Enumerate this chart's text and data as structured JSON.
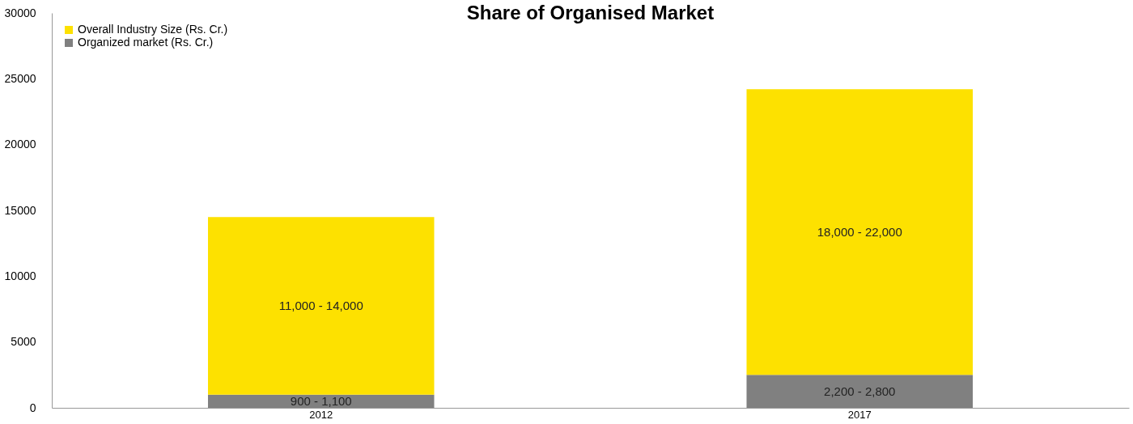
{
  "chart_data": {
    "type": "bar",
    "title": "Share of Organised Market",
    "categories": [
      "2012",
      "2017"
    ],
    "stacked": true,
    "series": [
      {
        "name": "Organized market (Rs. Cr.)",
        "color": "#808080",
        "values": [
          1000,
          2500
        ]
      },
      {
        "name": "Overall Industry Size (Rs. Cr.)",
        "color": "#fde100",
        "values": [
          13500,
          21700
        ]
      }
    ],
    "annotations": [
      "900 - 1,100",
      "2,200 - 2,800",
      "11,000 - 14,000",
      "18,000 - 22,000"
    ],
    "ylim": [
      0,
      30000
    ],
    "yticks": [
      0,
      5000,
      10000,
      15000,
      20000,
      25000,
      30000
    ],
    "grid": false,
    "legend": "top left"
  }
}
